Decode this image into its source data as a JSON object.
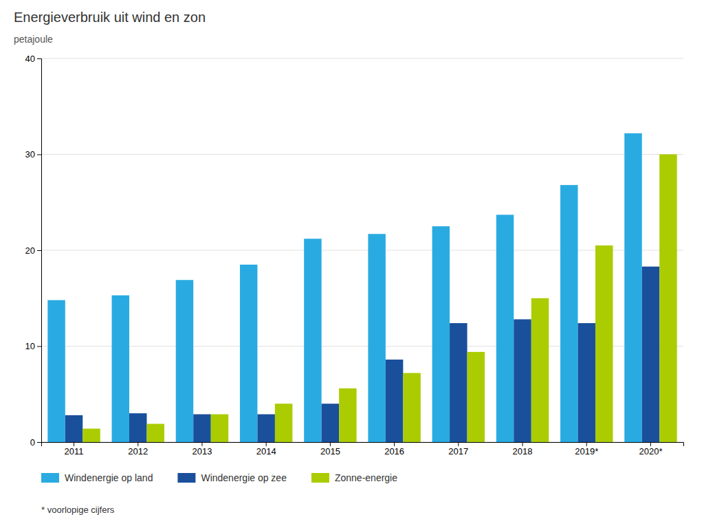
{
  "chart_data": {
    "type": "bar",
    "title": "Energieverbruik uit wind en zon",
    "ylabel": "petajoule",
    "footnote": "* voorlopige cijfers",
    "categories": [
      "2011",
      "2012",
      "2013",
      "2014",
      "2015",
      "2016",
      "2017",
      "2018",
      "2019*",
      "2020*"
    ],
    "series": [
      {
        "name": "Windenergie op land",
        "color": "#29ABE2",
        "values": [
          14.8,
          15.3,
          16.9,
          18.5,
          21.2,
          21.7,
          22.5,
          23.7,
          26.8,
          32.2
        ]
      },
      {
        "name": "Windenergie op zee",
        "color": "#1A4F9C",
        "values": [
          2.8,
          3.0,
          2.9,
          2.9,
          4.0,
          8.6,
          12.4,
          12.8,
          12.4,
          18.3
        ]
      },
      {
        "name": "Zonne-energie",
        "color": "#AACC00",
        "values": [
          1.4,
          1.9,
          2.9,
          4.0,
          5.6,
          7.2,
          9.4,
          15.0,
          20.5,
          30.0
        ]
      }
    ],
    "ylim": [
      0,
      40
    ],
    "yticks": [
      0,
      10,
      20,
      30,
      40
    ],
    "grid": true,
    "legend": "bottom"
  }
}
